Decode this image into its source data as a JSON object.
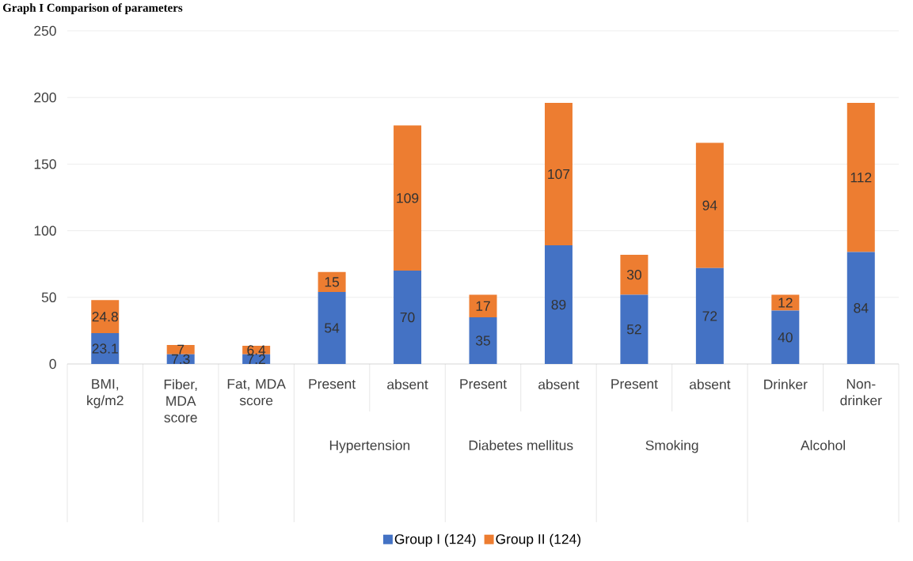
{
  "chart_data": {
    "type": "bar",
    "stacked": true,
    "title": "Graph I Comparison of parameters",
    "categories": [
      "BMI, kg/m2",
      "Fiber, MDA score",
      "Fat, MDA score",
      "Present",
      "absent",
      "Present",
      "absent",
      "Present",
      "absent",
      "Drinker",
      "Non-drinker"
    ],
    "annotations": [
      "Hypertension",
      "Diabetes mellitus",
      "Smoking",
      "Alcohol"
    ],
    "series": [
      {
        "name": "Group I (124)",
        "color": "#4472c4",
        "values": [
          23.1,
          7.3,
          7.2,
          54,
          70,
          35,
          89,
          52,
          72,
          40,
          84
        ]
      },
      {
        "name": "Group II (124)",
        "color": "#ed7d31",
        "values": [
          24.8,
          7,
          6.4,
          15,
          109,
          17,
          107,
          30,
          94,
          12,
          112
        ]
      }
    ],
    "ylim": [
      0,
      250
    ],
    "yticks": [
      0,
      50,
      100,
      150,
      200,
      250
    ],
    "grid": "y",
    "legend": "bottom",
    "data_labels": true
  }
}
